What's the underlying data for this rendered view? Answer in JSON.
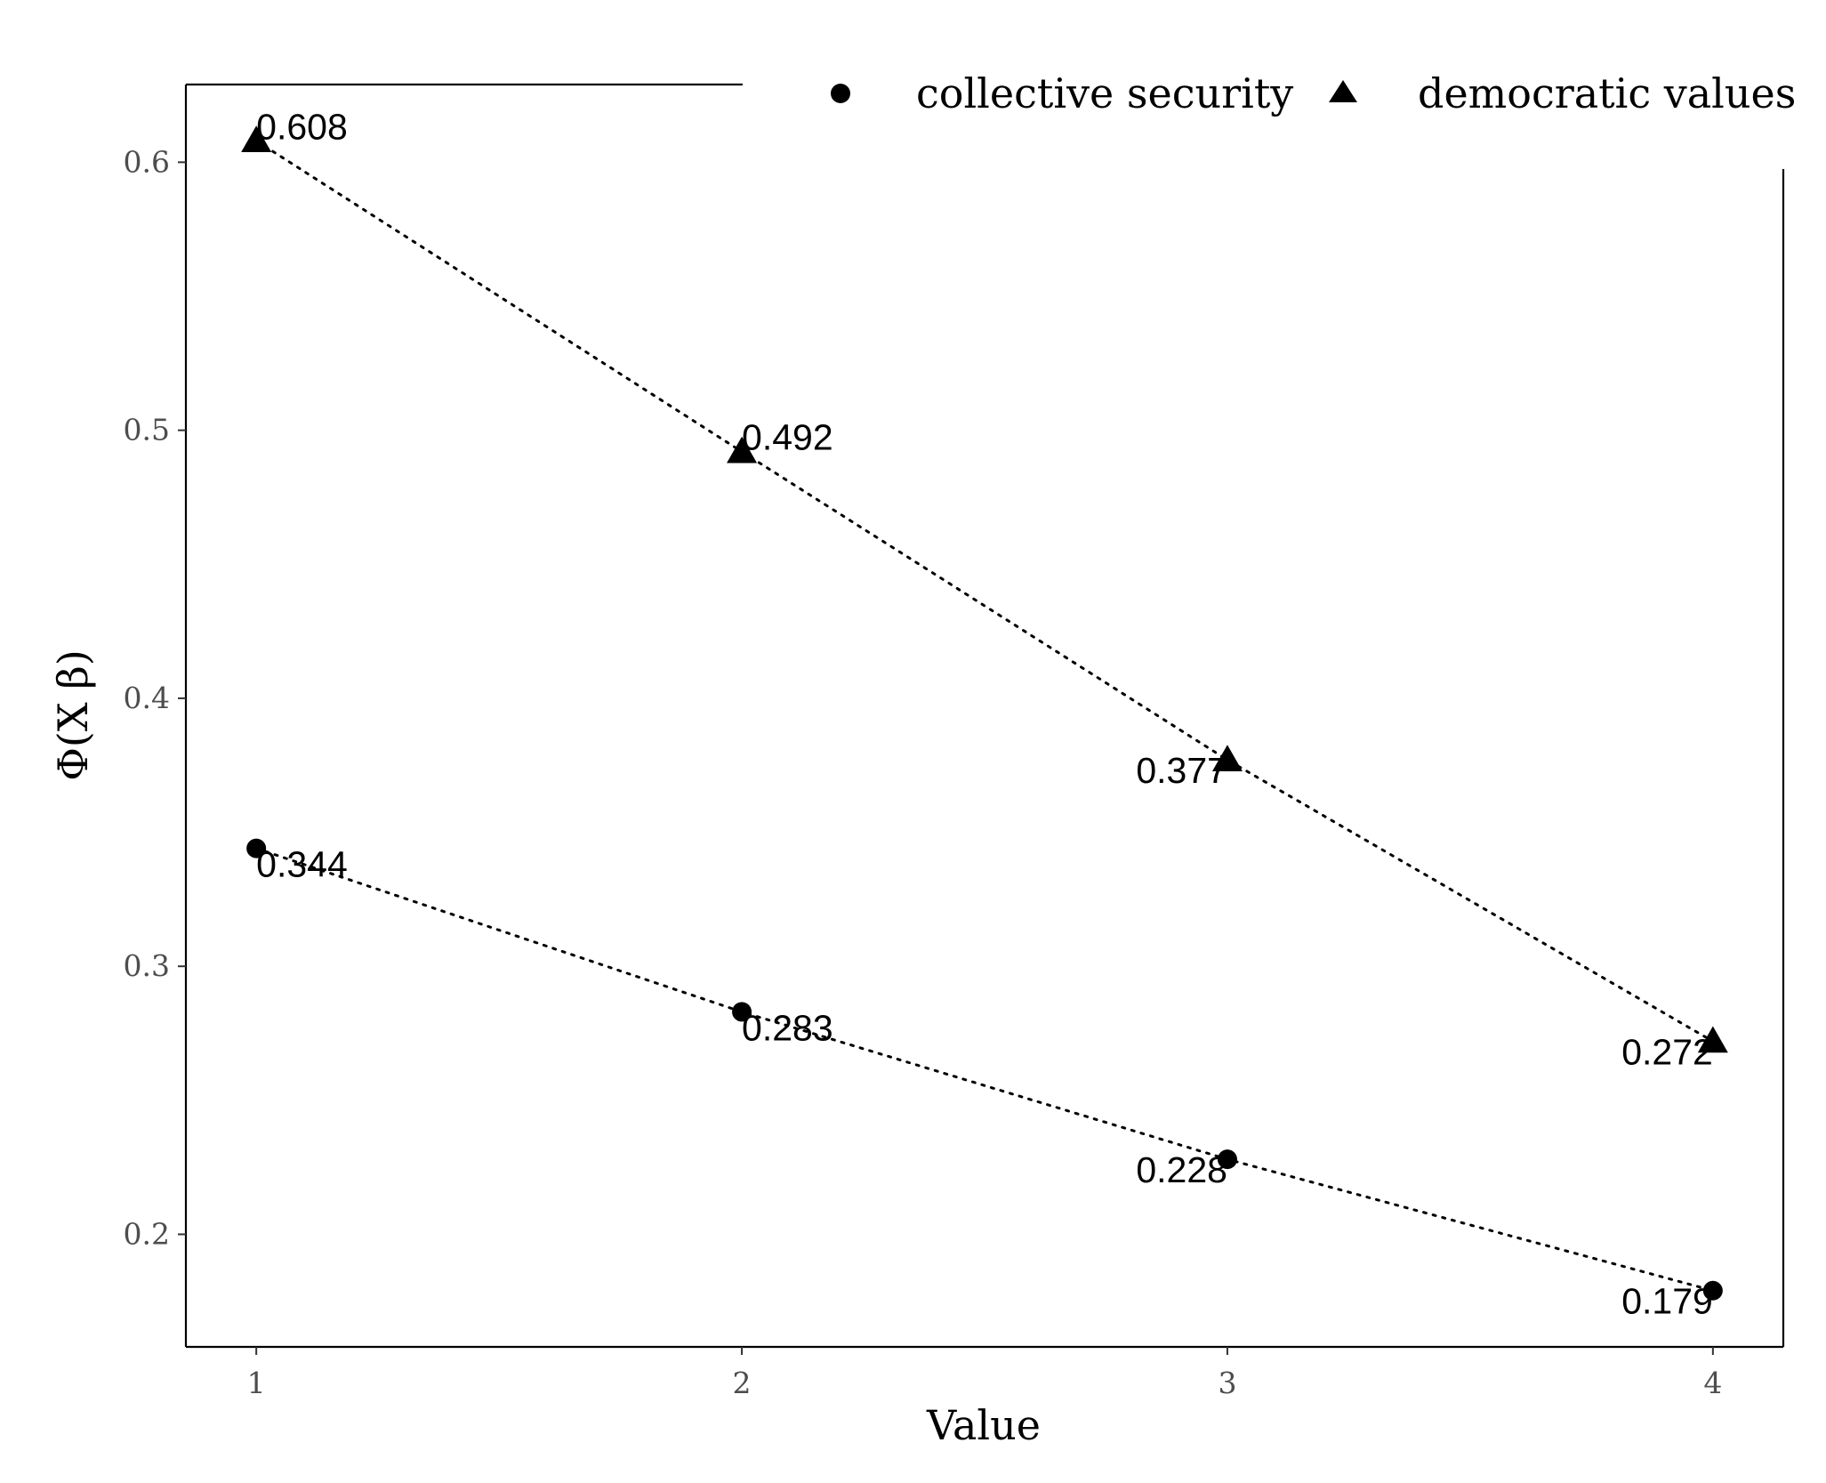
{
  "chart_data": {
    "type": "line",
    "xlabel": "Value",
    "ylabel": "Φ(X β)",
    "x": [
      1,
      2,
      3,
      4
    ],
    "x_tick_labels": [
      "1",
      "2",
      "3",
      "4"
    ],
    "y_tick_labels": [
      "0.2",
      "0.3",
      "0.4",
      "0.5",
      "0.6"
    ],
    "y_ticks": [
      0.2,
      0.3,
      0.4,
      0.5,
      0.6
    ],
    "xlim": [
      0.855,
      4.145
    ],
    "ylim": [
      0.158,
      0.629
    ],
    "grid": false,
    "legend_position": "top-right",
    "line_style": "dotted",
    "series": [
      {
        "name": "collective security",
        "marker": "circle",
        "values": [
          0.344,
          0.283,
          0.228,
          0.179
        ],
        "labels": [
          "0.344",
          "0.283",
          "0.228",
          "0.179"
        ]
      },
      {
        "name": "democratic values",
        "marker": "triangle",
        "values": [
          0.608,
          0.492,
          0.377,
          0.272
        ],
        "labels": [
          "0.608",
          "0.492",
          "0.377",
          "0.272"
        ]
      }
    ]
  }
}
